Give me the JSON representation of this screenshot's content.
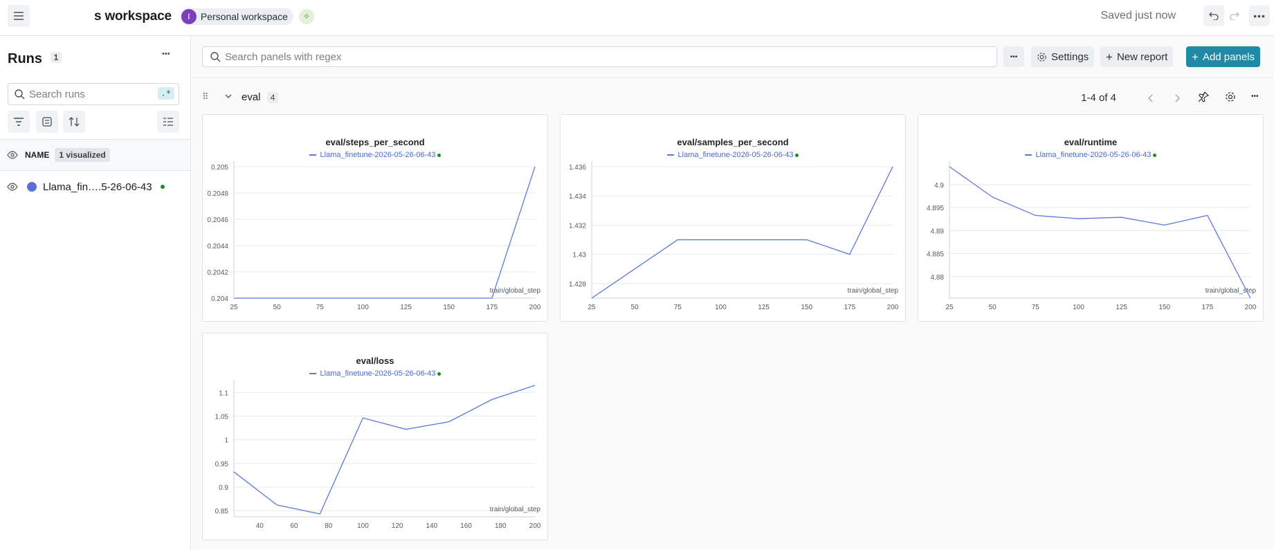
{
  "header": {
    "workspace_title": "s workspace",
    "avatar_initial": "I",
    "personal_workspace": "Personal workspace",
    "saved_status": "Saved just now"
  },
  "sidebar": {
    "title": "Runs",
    "count": "1",
    "search_placeholder": "Search runs",
    "regex_label": ".*",
    "name_header": "NAME",
    "visualized_badge": "1 visualized",
    "run_name": "Llama_fin….5-26-06-43",
    "run_color": "#5b6fd8",
    "run_status_color": "#1c8a2a"
  },
  "toolbar": {
    "search_placeholder": "Search panels with regex",
    "settings_label": "Settings",
    "new_report_label": "New report",
    "add_panels_label": "Add panels"
  },
  "section": {
    "name": "eval",
    "count": "4",
    "pager_text": "1-4 of 4"
  },
  "chart_data": [
    {
      "type": "line",
      "title": "eval/steps_per_second",
      "legend": "Llama_finetune-2026-05-26-06-43",
      "xlabel": "train/global_step",
      "x": [
        25,
        50,
        75,
        100,
        125,
        150,
        175,
        200
      ],
      "series": [
        {
          "name": "Llama_finetune-2026-05-26-06-43",
          "values": [
            0.204,
            0.204,
            0.204,
            0.204,
            0.204,
            0.204,
            0.204,
            0.205
          ]
        }
      ],
      "xlim": [
        25,
        200
      ],
      "ylim": [
        0.204,
        0.205
      ],
      "xticks": [
        "25",
        "50",
        "75",
        "100",
        "125",
        "150",
        "175",
        "200"
      ],
      "yticks": [
        "0.204",
        "0.2042",
        "0.2044",
        "0.2046",
        "0.2048",
        "0.205"
      ]
    },
    {
      "type": "line",
      "title": "eval/samples_per_second",
      "legend": "Llama_finetune-2026-05-26-06-43",
      "xlabel": "train/global_step",
      "x": [
        25,
        50,
        75,
        100,
        125,
        150,
        175,
        200
      ],
      "series": [
        {
          "name": "Llama_finetune-2026-05-26-06-43",
          "values": [
            1.427,
            1.429,
            1.431,
            1.431,
            1.431,
            1.431,
            1.43,
            1.436
          ]
        }
      ],
      "xlim": [
        25,
        200
      ],
      "ylim": [
        1.427,
        1.436
      ],
      "xticks": [
        "25",
        "50",
        "75",
        "100",
        "125",
        "150",
        "175",
        "200"
      ],
      "yticks": [
        "1.428",
        "1.43",
        "1.432",
        "1.434",
        "1.436"
      ]
    },
    {
      "type": "line",
      "title": "eval/runtime",
      "legend": "Llama_finetune-2026-05-26-06-43",
      "xlabel": "train/global_step",
      "x": [
        25,
        50,
        75,
        100,
        125,
        150,
        175,
        200
      ],
      "series": [
        {
          "name": "Llama_finetune-2026-05-26-06-43",
          "values": [
            4.9039,
            4.8973,
            4.8933,
            4.8926,
            4.8929,
            4.8912,
            4.8933,
            4.8753
          ]
        }
      ],
      "xlim": [
        25,
        200
      ],
      "ylim": [
        4.8753,
        4.9039
      ],
      "xticks": [
        "25",
        "50",
        "75",
        "100",
        "125",
        "150",
        "175",
        "200"
      ],
      "yticks": [
        "4.88",
        "4.885",
        "4.89",
        "4.895",
        "4.9"
      ]
    },
    {
      "type": "line",
      "title": "eval/loss",
      "legend": "Llama_finetune-2026-05-26-06-43",
      "xlabel": "train/global_step",
      "x": [
        25,
        50,
        75,
        100,
        125,
        150,
        175,
        200
      ],
      "series": [
        {
          "name": "Llama_finetune-2026-05-26-06-43",
          "values": [
            0.932,
            0.862,
            0.843,
            1.046,
            1.022,
            1.038,
            1.085,
            1.115
          ]
        }
      ],
      "xlim": [
        25,
        200
      ],
      "ylim": [
        0.837,
        1.115
      ],
      "xticks": [
        "40",
        "60",
        "80",
        "100",
        "120",
        "140",
        "160",
        "180",
        "200"
      ],
      "yticks": [
        "0.85",
        "0.9",
        "0.95",
        "1",
        "1.05",
        "1.1"
      ]
    }
  ]
}
